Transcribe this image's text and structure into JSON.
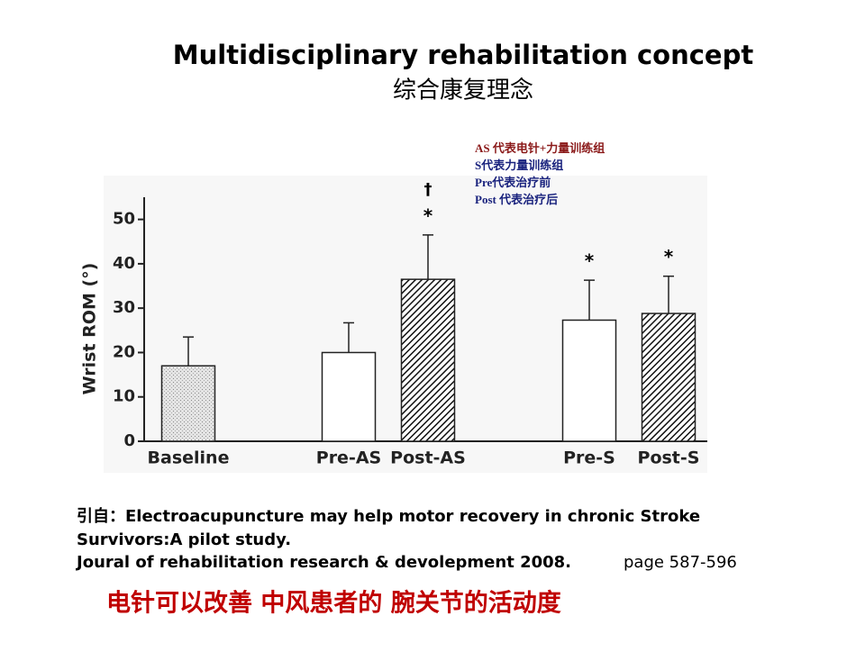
{
  "slide": {
    "title": "Multidisciplinary rehabilitation concept",
    "subtitle": "综合康复理念",
    "notes": [
      "AS 代表电针+力量训练组",
      "S代表力量训练组",
      "Pre代表治疗前",
      "Post 代表治疗后"
    ],
    "citation": [
      "引自：Electroacupuncture may help motor recovery in chronic Stroke",
      "Survivors:A pilot study.",
      "Joural of rehabilitation research & devolepment 2008."
    ],
    "pages": "page 587-596",
    "conclusion": "电针可以改善 中风患者的 腕关节的活动度"
  },
  "chart_data": {
    "type": "bar",
    "y_label": "Wrist ROM (°)",
    "categories": [
      "Baseline",
      "Pre-AS",
      "Post-AS",
      "Pre-S",
      "Post-S"
    ],
    "values": [
      17,
      20,
      36.5,
      27.3,
      28.8
    ],
    "errors": [
      6.5,
      6.7,
      10,
      9,
      8.4
    ],
    "patterns": [
      "stipple",
      "none",
      "hatch",
      "none",
      "hatch"
    ],
    "dagger": [
      null,
      null,
      "†",
      null,
      null
    ],
    "star": [
      null,
      null,
      "*",
      "*",
      "*"
    ],
    "ylim": [
      0,
      55
    ],
    "yticks": [
      0,
      10,
      20,
      30,
      40,
      50
    ]
  }
}
